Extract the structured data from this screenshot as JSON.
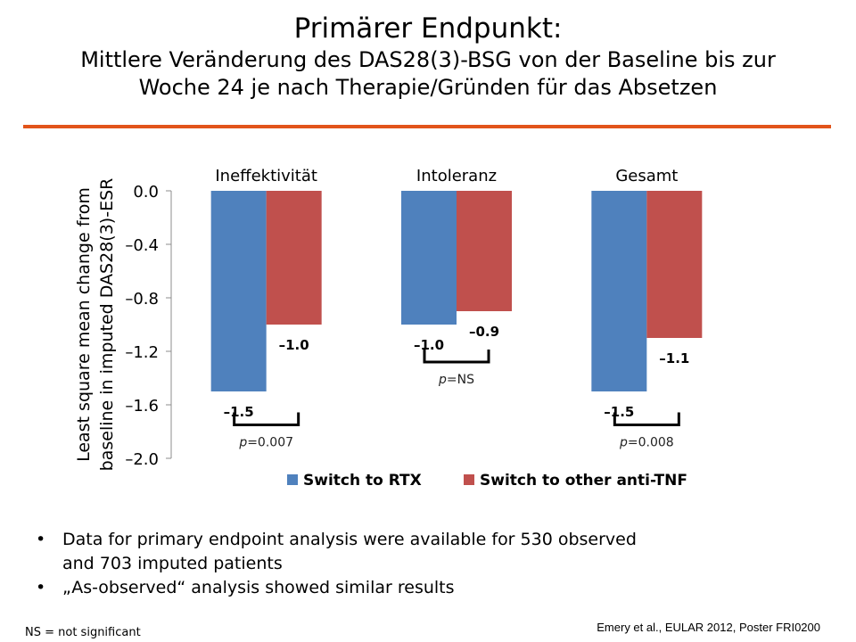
{
  "title": {
    "main": "Primärer Endpunkt:",
    "sub_line1": "Mittlere Veränderung des DAS28(3)-BSG von der Baseline bis zur",
    "sub_line2": "Woche 24 je nach Therapie/Gründen für das Absetzen"
  },
  "colors": {
    "accent_rule": "#e2541a",
    "rtx": "#4f81bd",
    "anti_tnf": "#c0504d"
  },
  "chart_data": {
    "type": "bar",
    "categories": [
      "Ineffektivität",
      "Intoleranz",
      "Gesamt"
    ],
    "series": [
      {
        "name": "Switch to RTX",
        "values": [
          -1.5,
          -1.0,
          -1.5
        ],
        "labels": [
          "–1.5",
          "–1.0",
          "–1.5"
        ]
      },
      {
        "name": "Switch to other anti-TNF",
        "values": [
          -1.0,
          -0.9,
          -1.1
        ],
        "labels": [
          "–1.0",
          "–0.9",
          "–1.1"
        ]
      }
    ],
    "ylabel_line1": "Least square mean change from",
    "ylabel_line2": "baseline in imputed DAS28(3)-ESR",
    "ylim": [
      -2.0,
      0.0
    ],
    "yticks": [
      0.0,
      -0.4,
      -0.8,
      -1.2,
      -1.6,
      -2.0
    ],
    "ytick_labels": [
      "0.0",
      "–0.4",
      "–0.8",
      "–1.2",
      "–1.6",
      "–2.0"
    ],
    "grid": false,
    "legend_position": "bottom",
    "annotations": [
      {
        "category": "Ineffektivität",
        "p_prefix": "p",
        "p_value": "=0.007",
        "level": -1.75
      },
      {
        "category": "Intoleranz",
        "p_prefix": "p",
        "p_value": "=NS",
        "level": -1.28
      },
      {
        "category": "Gesamt",
        "p_prefix": "p",
        "p_value": "=0.008",
        "level": -1.75
      }
    ]
  },
  "bullets": [
    "Data for primary endpoint analysis were available for 530 observed",
    "and 703 imputed patients",
    "„As-observed“ analysis showed similar results"
  ],
  "bullet_symbol": "•",
  "footnote": "NS = not significant",
  "source": "Emery et al., EULAR 2012, Poster FRI0200"
}
